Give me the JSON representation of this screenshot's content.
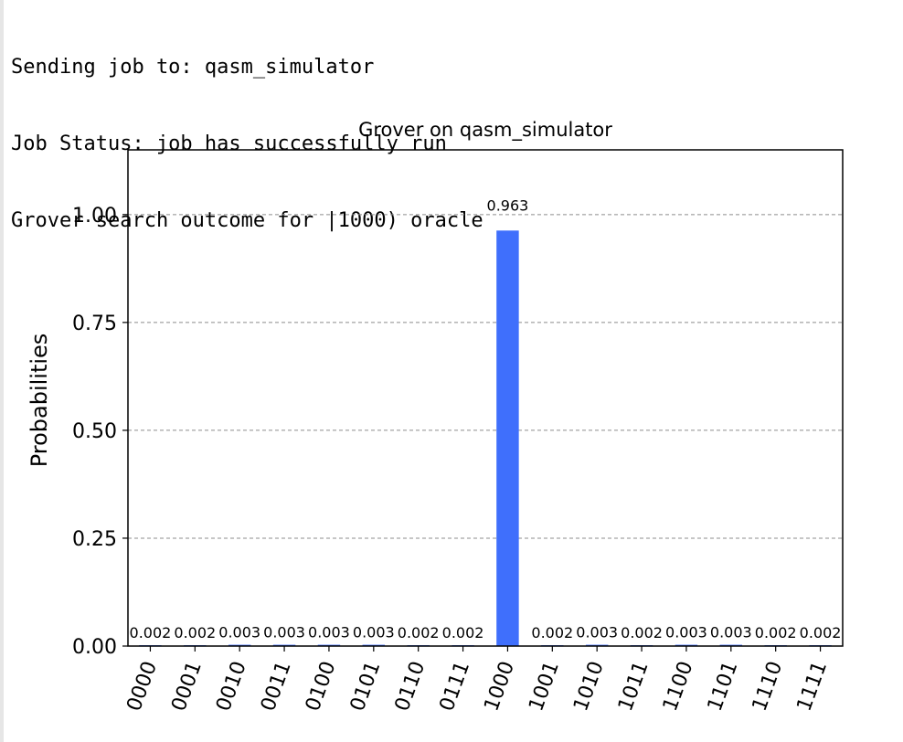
{
  "console": {
    "lines": [
      "Sending job to: qasm_simulator",
      "Job Status: job has successfully run",
      "Grover search outcome for |1000) oracle"
    ]
  },
  "chart_data": {
    "type": "bar",
    "title": "Grover on qasm_simulator",
    "xlabel": "",
    "ylabel": "Probabilities",
    "ylim": [
      0,
      1.15
    ],
    "yticks": [
      0.0,
      0.25,
      0.5,
      0.75,
      1.0
    ],
    "ytick_labels": [
      "0.00",
      "0.25",
      "0.50",
      "0.75",
      "1.00"
    ],
    "grid": "horizontal dashed",
    "bar_color": "#3f6ffc",
    "categories": [
      "0000",
      "0001",
      "0010",
      "0011",
      "0100",
      "0101",
      "0110",
      "0111",
      "1000",
      "1001",
      "1010",
      "1011",
      "1100",
      "1101",
      "1110",
      "1111"
    ],
    "values": [
      0.002,
      0.002,
      0.003,
      0.003,
      0.003,
      0.003,
      0.002,
      0.002,
      0.963,
      0.002,
      0.003,
      0.002,
      0.003,
      0.003,
      0.002,
      0.002
    ],
    "value_labels": [
      "0.002",
      "0.002",
      "0.003",
      "0.003",
      "0.003",
      "0.003",
      "0.002",
      "0.002",
      "0.963",
      "0.002",
      "0.003",
      "0.002",
      "0.003",
      "0.003",
      "0.002",
      "0.002"
    ]
  }
}
